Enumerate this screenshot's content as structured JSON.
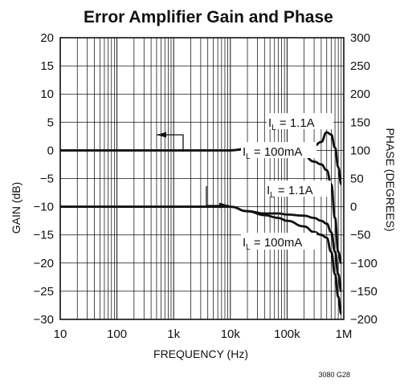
{
  "chart_data": {
    "type": "line",
    "title": "Error Amplifier Gain and Phase",
    "xlabel": "FREQUENCY (Hz)",
    "ylabel_left": "GAIN (dB)",
    "ylabel_right": "PHASE (DEGREES)",
    "x_scale": "log",
    "xlim": [
      10,
      1000000
    ],
    "ylim_left": [
      -30,
      20
    ],
    "ylim_right": [
      -200,
      300
    ],
    "grid": true,
    "x_ticks": [
      "10",
      "100",
      "1k",
      "10k",
      "100k",
      "1M"
    ],
    "y_ticks_left": [
      "20",
      "15",
      "10",
      "5",
      "0",
      "−5",
      "−10",
      "−15",
      "−20",
      "−25",
      "−30"
    ],
    "y_ticks_right": [
      "300",
      "250",
      "200",
      "150",
      "100",
      "50",
      "0",
      "−50",
      "−100",
      "−150",
      "−200"
    ],
    "series": [
      {
        "axis": "left",
        "x": [
          10,
          100,
          1000,
          10000,
          20000,
          40000,
          70000,
          100000,
          200000,
          300000,
          400000,
          500000,
          600000,
          700000,
          800000,
          900000
        ],
        "y": [
          0,
          0,
          0,
          0,
          0.3,
          0.6,
          0.7,
          0.6,
          0.7,
          0.8,
          1.5,
          3.2,
          2.8,
          0.5,
          -3,
          -6
        ]
      },
      {
        "axis": "left",
        "x": [
          10,
          100,
          1000,
          10000,
          20000,
          40000,
          70000,
          100000,
          150000,
          200000,
          300000,
          400000,
          500000,
          600000,
          700000,
          800000,
          900000
        ],
        "y": [
          0,
          0,
          0,
          0,
          0.3,
          0.3,
          0.5,
          0.5,
          0,
          -1,
          -2,
          -2.5,
          -3.5,
          -6,
          -12,
          -18,
          -20
        ]
      },
      {
        "axis": "right",
        "x": [
          10,
          100,
          1000,
          10000,
          20000,
          40000,
          70000,
          100000,
          200000,
          300000,
          400000,
          500000,
          600000,
          700000,
          800000,
          900000
        ],
        "y": [
          0,
          0,
          0,
          0,
          -8,
          -12,
          -12,
          -14,
          -16,
          -20,
          -25,
          -30,
          -45,
          -80,
          -120,
          -150
        ]
      },
      {
        "axis": "right",
        "x": [
          10,
          100,
          1000,
          10000,
          20000,
          40000,
          70000,
          100000,
          200000,
          300000,
          400000,
          500000,
          600000,
          700000,
          800000,
          900000
        ],
        "y": [
          0,
          0,
          0,
          0,
          -8,
          -15,
          -20,
          -25,
          -35,
          -45,
          -50,
          -55,
          -80,
          -120,
          -160,
          -190
        ]
      }
    ],
    "annotations": [
      {
        "prefix": "I",
        "sub": "L",
        "text": " = 1.1A"
      },
      {
        "prefix": "I",
        "sub": "L",
        "text": " = 100mA"
      },
      {
        "prefix": "I",
        "sub": "L",
        "text": " = 1.1A"
      },
      {
        "prefix": "I",
        "sub": "L",
        "text": " = 100mA"
      }
    ],
    "figure_code": "3080 G28"
  }
}
